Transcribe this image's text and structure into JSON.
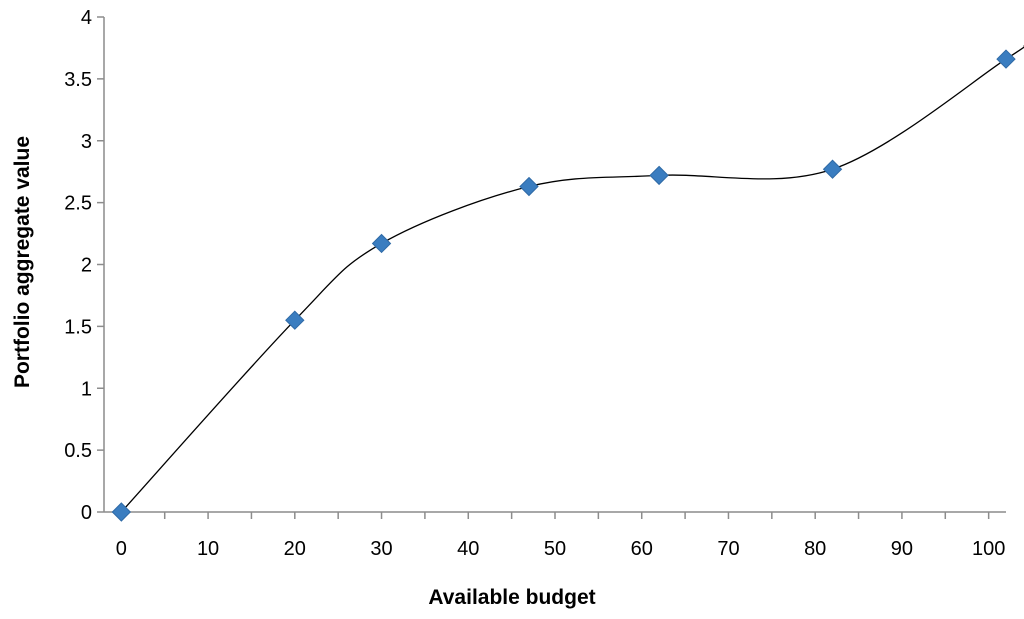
{
  "chart_data": {
    "type": "scatter",
    "title": "",
    "xlabel": "Available budget",
    "ylabel": "Portfolio aggregate value",
    "xlim": [
      -2,
      102
    ],
    "ylim": [
      0,
      4
    ],
    "xticks": [
      0,
      10,
      20,
      30,
      40,
      50,
      60,
      70,
      80,
      90,
      100
    ],
    "xtick_labels": [
      "0",
      "10",
      "20",
      "30",
      "40",
      "50",
      "60",
      "70",
      "80",
      "90",
      "100"
    ],
    "yticks": [
      0,
      0.5,
      1,
      1.5,
      2,
      2.5,
      3,
      3.5,
      4
    ],
    "ytick_labels": [
      "0",
      "0.5",
      "1",
      "1.5",
      "2",
      "2.5",
      "3",
      "3.5",
      "4"
    ],
    "grid": false,
    "legend": "none",
    "series": [
      {
        "marker": "diamond",
        "color": "#3A7DC0",
        "trendline": "smooth",
        "trendline_color": "#000000",
        "x": [
          0,
          20,
          30,
          47,
          62,
          82,
          102
        ],
        "y": [
          0,
          1.55,
          2.17,
          2.63,
          2.72,
          2.77,
          3.66
        ]
      }
    ]
  }
}
